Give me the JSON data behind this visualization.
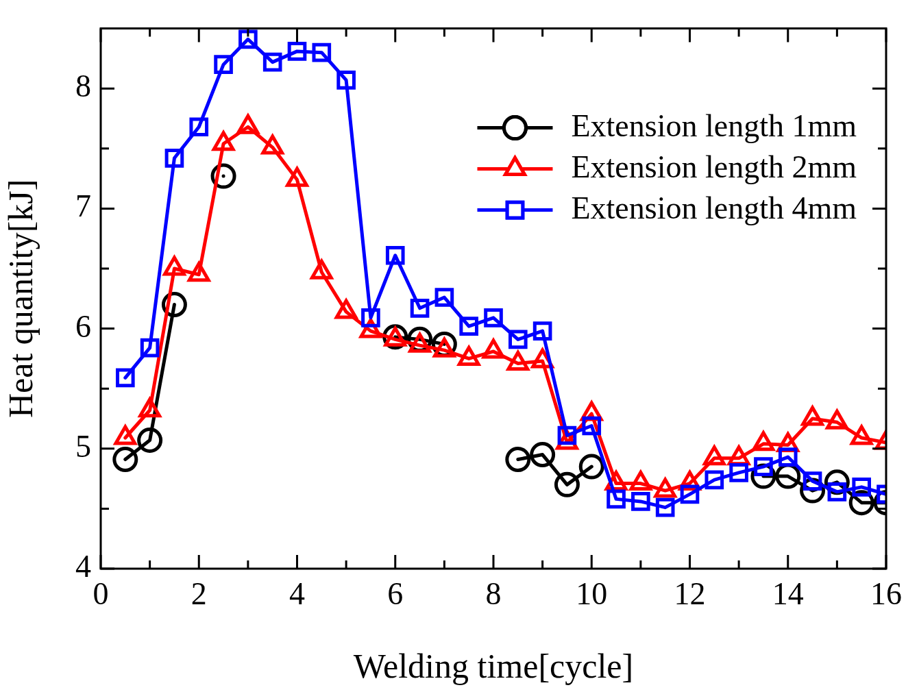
{
  "chart_data": {
    "type": "line",
    "xlabel": "Welding time[cycle]",
    "ylabel": "Heat quantity[kJ]",
    "x": [
      0.5,
      1,
      1.5,
      2,
      2.5,
      3,
      3.5,
      4,
      4.5,
      5,
      5.5,
      6,
      6.5,
      7,
      7.5,
      8,
      8.5,
      9,
      9.5,
      10,
      10.5,
      11,
      11.5,
      12,
      12.5,
      13,
      13.5,
      14,
      14.5,
      15,
      15.5,
      16
    ],
    "series": [
      {
        "name": "Extension length 1mm",
        "color": "#000000",
        "marker": "circle",
        "values": [
          4.91,
          5.07,
          6.2,
          null,
          7.27,
          null,
          null,
          null,
          null,
          null,
          null,
          5.93,
          5.91,
          5.87,
          null,
          null,
          4.91,
          4.95,
          4.7,
          4.85,
          null,
          null,
          null,
          null,
          null,
          null,
          4.77,
          4.77,
          4.65,
          4.72,
          4.55,
          4.55
        ]
      },
      {
        "name": "Extension length 2mm",
        "color": "#ff0000",
        "marker": "triangle",
        "values": [
          5.09,
          5.32,
          6.5,
          6.45,
          7.54,
          7.68,
          7.51,
          7.24,
          6.47,
          6.14,
          5.98,
          5.91,
          5.86,
          5.82,
          5.75,
          5.81,
          5.71,
          5.73,
          5.05,
          5.29,
          4.71,
          4.71,
          4.65,
          4.71,
          4.92,
          4.92,
          5.04,
          5.03,
          5.25,
          5.22,
          5.09,
          5.05
        ]
      },
      {
        "name": "Extension length 4mm",
        "color": "#0000ff",
        "marker": "square",
        "values": [
          5.59,
          5.84,
          7.42,
          7.68,
          8.2,
          8.41,
          8.22,
          8.31,
          8.3,
          8.07,
          6.09,
          6.61,
          6.17,
          6.26,
          6.02,
          6.09,
          5.91,
          5.98,
          5.11,
          5.19,
          4.58,
          4.56,
          4.51,
          4.62,
          4.74,
          4.8,
          4.85,
          4.93,
          4.73,
          4.64,
          4.68,
          4.62
        ]
      }
    ],
    "xlim": [
      0,
      16
    ],
    "xticks": [
      0,
      {
        "value": 1,
        "label": null
      },
      2,
      {
        "value": 3,
        "label": null
      },
      4,
      {
        "value": 5,
        "label": null
      },
      6,
      {
        "value": 7,
        "label": null
      },
      8,
      {
        "value": 9,
        "label": null
      },
      10,
      {
        "value": 11,
        "label": null
      },
      12,
      {
        "value": 13,
        "label": null
      },
      14,
      {
        "value": 15,
        "label": null
      },
      16
    ],
    "ylim": [
      4,
      8.5
    ],
    "yticks": [
      4,
      {
        "value": 4.5,
        "label": null
      },
      5,
      {
        "value": 5.5,
        "label": null
      },
      6,
      {
        "value": 6.5,
        "label": null
      },
      7,
      {
        "value": 7.5,
        "label": null
      },
      8
    ],
    "grid": false,
    "legend": "top right",
    "line_style": "solid"
  }
}
